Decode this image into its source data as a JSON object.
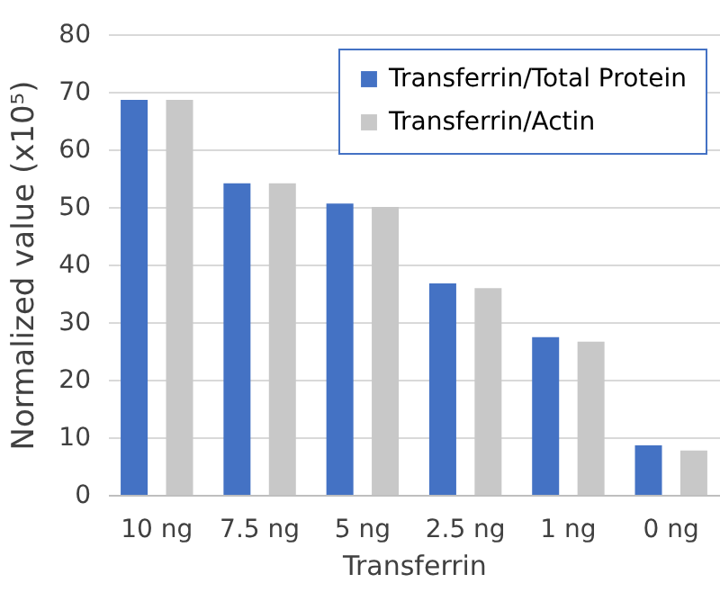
{
  "chart_data": {
    "type": "bar",
    "xlabel": "Transferrin",
    "ylabel": "Normalized value  (x10⁵)",
    "categories": [
      "10 ng",
      "7.5 ng",
      "5 ng",
      "2.5 ng",
      "1 ng",
      "0 ng"
    ],
    "series": [
      {
        "name": "Transferrin/Total Protein",
        "color": "#4472c4",
        "values": [
          68.6,
          54.1,
          50.6,
          36.7,
          27.4,
          8.6
        ]
      },
      {
        "name": "Transferrin/Actin",
        "color": "#c8c8c8",
        "values": [
          68.6,
          54.1,
          50.0,
          35.9,
          26.6,
          7.7
        ]
      }
    ],
    "ylim": [
      0,
      80
    ],
    "yticks": [
      0,
      10,
      20,
      30,
      40,
      50,
      60,
      70,
      80
    ],
    "grid": "y",
    "legend": "top right"
  }
}
